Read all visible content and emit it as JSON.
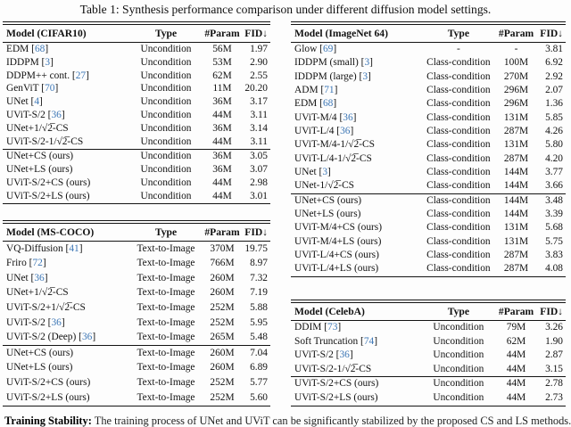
{
  "title": "Table 1: Synthesis performance comparison under different diffusion model settings.",
  "colors": {
    "citation_blue": "#3d77b6",
    "rule_black": "#141414"
  },
  "footer": {
    "heading": "Training Stability:",
    "text": "The training process of UNet and UViT can be significantly stabilized by the proposed CS and LS methods."
  },
  "tables": [
    {
      "name": "cifar10",
      "headers": [
        "Model (CIFAR10)",
        "Type",
        "#Param",
        "FID↓"
      ],
      "groups": [
        [
          [
            "EDM [68]",
            "Uncondition",
            "56M",
            "1.97"
          ],
          [
            "IDDPM [3]",
            "Uncondition",
            "53M",
            "2.90"
          ],
          [
            "DDPM++ cont. [27]",
            "Uncondition",
            "62M",
            "2.55"
          ],
          [
            "GenViT [70]",
            "Uncondition",
            "11M",
            "20.20"
          ],
          [
            "UNet [4]",
            "Uncondition",
            "36M",
            "3.17"
          ],
          [
            "UViT-S/2 [36]",
            "Uncondition",
            "44M",
            "3.11"
          ],
          [
            "UNet+1/√2̅-CS",
            "Uncondition",
            "36M",
            "3.14"
          ],
          [
            "UViT-S/2-1/√2̅-CS",
            "Uncondition",
            "44M",
            "3.11"
          ]
        ],
        [
          [
            "UNet+CS (ours)",
            "Uncondition",
            "36M",
            "3.05"
          ],
          [
            "UNet+LS (ours)",
            "Uncondition",
            "36M",
            "3.07"
          ],
          [
            "UViT-S/2+CS (ours)",
            "Uncondition",
            "44M",
            "2.98"
          ],
          [
            "UViT-S/2+LS (ours)",
            "Uncondition",
            "44M",
            "3.01"
          ]
        ]
      ]
    },
    {
      "name": "imagenet64",
      "headers": [
        "Model (ImageNet 64)",
        "Type",
        "#Param",
        "FID↓"
      ],
      "groups": [
        [
          [
            "Glow [69]",
            "-",
            "-",
            "3.81"
          ],
          [
            "IDDPM (small) [3]",
            "Class-condition",
            "100M",
            "6.92"
          ],
          [
            "IDDPM (large) [3]",
            "Class-condition",
            "270M",
            "2.92"
          ],
          [
            "ADM [71]",
            "Class-condition",
            "296M",
            "2.07"
          ],
          [
            "EDM [68]",
            "Class-condition",
            "296M",
            "1.36"
          ],
          [
            "UViT-M/4 [36]",
            "Class-condition",
            "131M",
            "5.85"
          ],
          [
            "UViT-L/4 [36]",
            "Class-condition",
            "287M",
            "4.26"
          ],
          [
            "UViT-M/4-1/√2̅-CS",
            "Class-condition",
            "131M",
            "5.80"
          ],
          [
            "UViT-L/4-1/√2̅-CS",
            "Class-condition",
            "287M",
            "4.20"
          ],
          [
            "UNet [3]",
            "Class-condition",
            "144M",
            "3.77"
          ],
          [
            "UNet-1/√2̅-CS",
            "Class-condition",
            "144M",
            "3.66"
          ]
        ],
        [
          [
            "UNet+CS (ours)",
            "Class-condition",
            "144M",
            "3.48"
          ],
          [
            "UNet+LS (ours)",
            "Class-condition",
            "144M",
            "3.39"
          ],
          [
            "UViT-M/4+CS (ours)",
            "Class-condition",
            "131M",
            "5.68"
          ],
          [
            "UViT-M/4+LS (ours)",
            "Class-condition",
            "131M",
            "5.75"
          ],
          [
            "UViT-L/4+CS (ours)",
            "Class-condition",
            "287M",
            "3.83"
          ],
          [
            "UViT-L/4+LS (ours)",
            "Class-condition",
            "287M",
            "4.08"
          ]
        ]
      ]
    },
    {
      "name": "mscoco",
      "headers": [
        "Model (MS-COCO)",
        "Type",
        "#Param",
        "FID↓"
      ],
      "groups": [
        [
          [
            "VQ-Diffusion [41]",
            "Text-to-Image",
            "370M",
            "19.75"
          ],
          [
            "Friro [72]",
            "Text-to-Image",
            "766M",
            "8.97"
          ],
          [
            "UNet [36]",
            "Text-to-Image",
            "260M",
            "7.32"
          ],
          [
            "UNet+1/√2̅-CS",
            "Text-to-Image",
            "260M",
            "7.19"
          ],
          [
            "UViT-S/2+1/√2̅-CS",
            "Text-to-Image",
            "252M",
            "5.88"
          ],
          [
            "UViT-S/2 [36]",
            "Text-to-Image",
            "252M",
            "5.95"
          ],
          [
            "UViT-S/2 (Deep) [36]",
            "Text-to-Image",
            "265M",
            "5.48"
          ]
        ],
        [
          [
            "UNet+CS (ours)",
            "Text-to-Image",
            "260M",
            "7.04"
          ],
          [
            "UNet+LS (ours)",
            "Text-to-Image",
            "260M",
            "6.89"
          ],
          [
            "UViT-S/2+CS (ours)",
            "Text-to-Image",
            "252M",
            "5.77"
          ],
          [
            "UViT-S/2+LS (ours)",
            "Text-to-Image",
            "252M",
            "5.60"
          ]
        ]
      ]
    },
    {
      "name": "celeba",
      "headers": [
        "Model (CelebA)",
        "Type",
        "#Param",
        "FID↓"
      ],
      "groups": [
        [
          [
            "DDIM [73]",
            "Uncondition",
            "79M",
            "3.26"
          ],
          [
            "Soft Truncation [74]",
            "Uncondition",
            "62M",
            "1.90"
          ],
          [
            "UViT-S/2 [36]",
            "Uncondition",
            "44M",
            "2.87"
          ],
          [
            "UViT-S/2-1/√2̅-CS",
            "Uncondition",
            "44M",
            "3.15"
          ]
        ],
        [
          [
            "UViT-S/2+CS (ours)",
            "Uncondition",
            "44M",
            "2.78"
          ],
          [
            "UViT-S/2+LS (ours)",
            "Uncondition",
            "44M",
            "2.73"
          ]
        ]
      ]
    }
  ]
}
